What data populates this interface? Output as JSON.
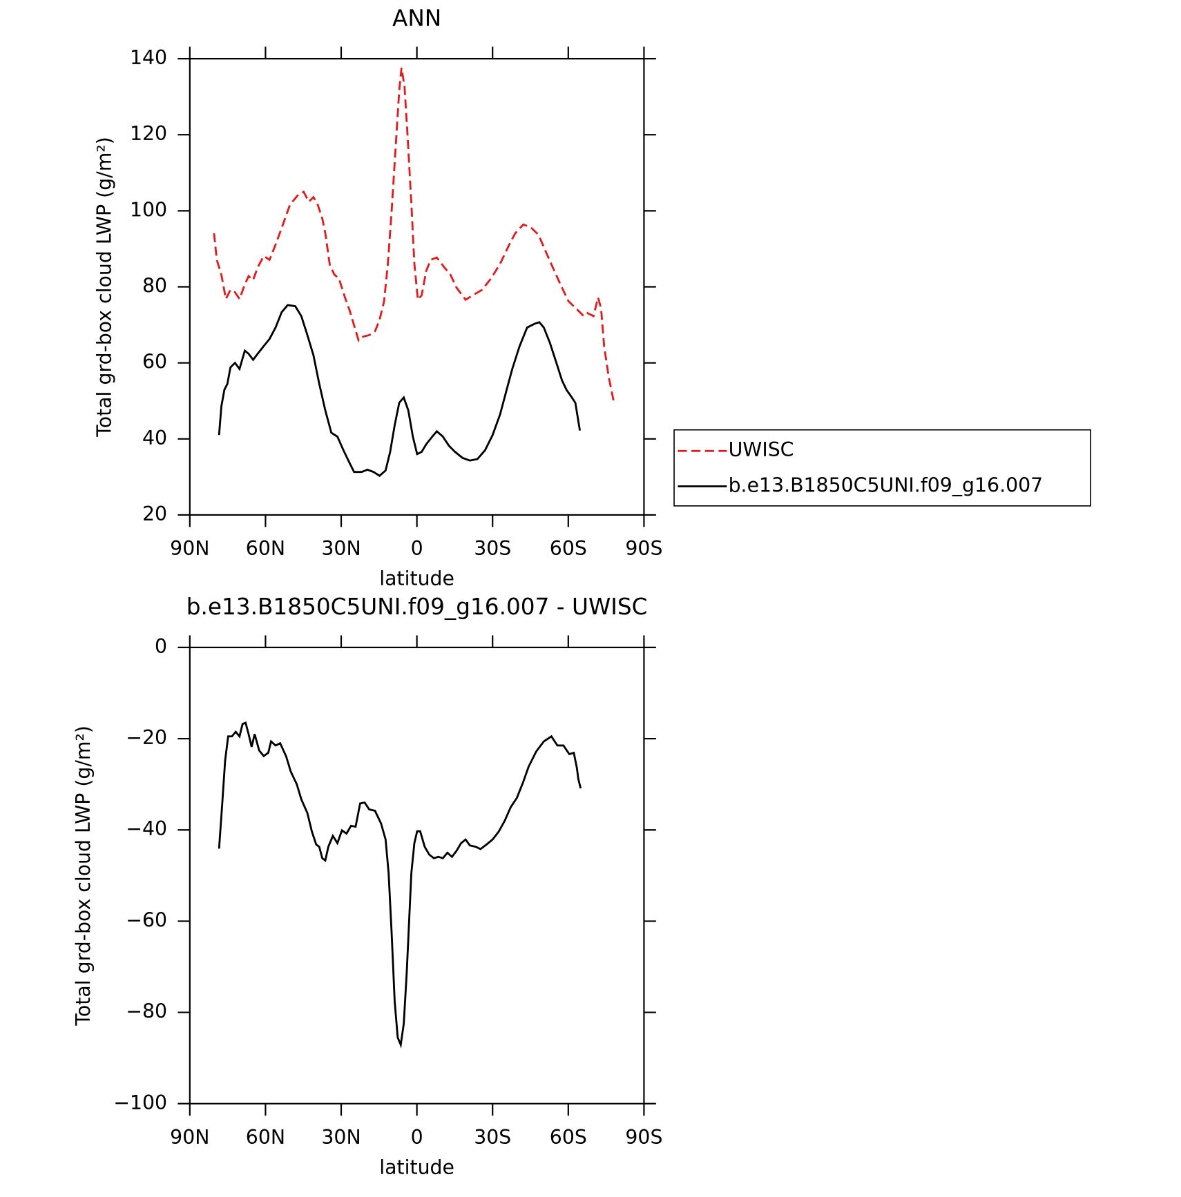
{
  "chart_data": [
    {
      "type": "line",
      "title": "ANN",
      "xlabel": "latitude",
      "ylabel": "Total grd-box cloud LWP (g/m²)",
      "xlim": [
        90,
        -90
      ],
      "xticks": [
        {
          "value": 90,
          "label": "90N"
        },
        {
          "value": 60,
          "label": "60N"
        },
        {
          "value": 30,
          "label": "30N"
        },
        0,
        {
          "value": -30,
          "label": "30S"
        },
        {
          "value": -60,
          "label": "60S"
        },
        {
          "value": -90,
          "label": "90S"
        }
      ],
      "ylim": [
        20,
        140
      ],
      "yticks": [
        20,
        40,
        60,
        80,
        100,
        120,
        140
      ],
      "legend": "right",
      "series": [
        {
          "name": "UWISC",
          "color": "#e41a1c",
          "dash": true,
          "x": [
            80.4,
            79.3,
            77.5,
            75.7,
            73.9,
            72.1,
            70.3,
            68.2,
            66.7,
            64.9,
            63.1,
            60.7,
            58.4,
            56.0,
            53.3,
            50.3,
            47.3,
            44.9,
            42.8,
            41.0,
            39.3,
            37.5,
            36.3,
            34.5,
            32.7,
            30.9,
            28.5,
            26.7,
            24.9,
            23.1,
            21.3,
            18.9,
            16.6,
            14.8,
            13.0,
            11.5,
            10.0,
            8.5,
            7.0,
            6.1,
            4.9,
            3.7,
            2.2,
            1.0,
            -0.4,
            -1.9,
            -3.7,
            -5.5,
            -7.9,
            -10.9,
            -13.3,
            -15.7,
            -19.3,
            -22.2,
            -25.8,
            -29.4,
            -33.0,
            -36.6,
            -39.0,
            -42.2,
            -45.2,
            -48.2,
            -51.2,
            -54.2,
            -57.2,
            -60.1,
            -63.1,
            -66.1,
            -67.6,
            -70.0,
            -71.8,
            -73.0,
            -74.2,
            -76.0,
            -78.1
          ],
          "values": [
            94.1,
            87.1,
            83.2,
            76.8,
            79.2,
            78.6,
            76.8,
            80.6,
            82.8,
            81.8,
            85.1,
            88.1,
            87.1,
            91.1,
            96.0,
            101.6,
            104.0,
            105.0,
            102.4,
            103.6,
            101.6,
            98.0,
            94.1,
            85.7,
            83.2,
            82.2,
            77.2,
            73.9,
            69.9,
            65.9,
            66.9,
            67.3,
            68.3,
            71.3,
            76.2,
            86.1,
            100.0,
            115.8,
            131.7,
            137.6,
            132.7,
            119.8,
            102.0,
            86.1,
            76.6,
            77.8,
            84.2,
            87.1,
            87.7,
            85.1,
            83.2,
            79.8,
            76.6,
            77.8,
            79.2,
            82.2,
            86.1,
            91.1,
            94.1,
            96.4,
            95.6,
            93.7,
            89.1,
            84.6,
            80.2,
            76.2,
            74.3,
            72.3,
            73.1,
            72.3,
            77.2,
            74.3,
            64.4,
            56.4,
            49.5
          ]
        },
        {
          "name": "b.e13.B1850C5UNI.f09_g16.007",
          "color": "#000000",
          "dash": false,
          "x": [
            78.4,
            77.5,
            76.3,
            75.1,
            73.9,
            72.1,
            70.3,
            68.2,
            66.7,
            64.9,
            63.1,
            60.7,
            58.4,
            56.0,
            53.6,
            51.2,
            48.2,
            45.8,
            43.4,
            41.0,
            38.7,
            36.3,
            33.9,
            31.5,
            29.1,
            26.7,
            24.9,
            21.9,
            19.6,
            17.2,
            14.8,
            12.4,
            10.6,
            8.8,
            7.0,
            5.2,
            3.4,
            1.6,
            -0.1,
            -1.9,
            -3.7,
            -6.1,
            -7.9,
            -10.3,
            -12.7,
            -15.1,
            -18.1,
            -21.0,
            -24.0,
            -27.0,
            -30.0,
            -33.0,
            -35.4,
            -37.8,
            -40.7,
            -43.7,
            -46.7,
            -48.5,
            -50.3,
            -52.7,
            -55.1,
            -57.5,
            -59.3,
            -61.0,
            -62.8,
            -64.6
          ],
          "values": [
            41.0,
            48.5,
            52.9,
            54.5,
            58.8,
            60.0,
            58.4,
            63.2,
            62.4,
            60.8,
            62.4,
            64.4,
            66.3,
            69.3,
            73.3,
            75.2,
            74.9,
            72.3,
            67.3,
            62.0,
            54.5,
            47.5,
            41.6,
            40.6,
            37.0,
            33.7,
            31.3,
            31.3,
            31.9,
            31.3,
            30.3,
            31.7,
            36.6,
            43.6,
            49.5,
            50.9,
            47.5,
            40.6,
            36.0,
            36.6,
            38.6,
            40.6,
            42.0,
            40.6,
            38.2,
            36.6,
            35.0,
            34.3,
            34.7,
            37.0,
            41.0,
            46.5,
            52.5,
            58.4,
            64.4,
            69.3,
            70.3,
            70.7,
            69.3,
            65.3,
            60.4,
            55.4,
            52.9,
            51.3,
            49.5,
            42.2
          ]
        }
      ]
    },
    {
      "type": "line",
      "title": "b.e13.B1850C5UNI.f09_g16.007 - UWISC",
      "xlabel": "latitude",
      "ylabel": "Total grd-box cloud LWP (g/m²)",
      "xlim": [
        90,
        -90
      ],
      "xticks": [
        {
          "value": 90,
          "label": "90N"
        },
        {
          "value": 60,
          "label": "60N"
        },
        {
          "value": 30,
          "label": "30N"
        },
        0,
        {
          "value": -30,
          "label": "30S"
        },
        {
          "value": -60,
          "label": "60S"
        },
        {
          "value": -90,
          "label": "90S"
        }
      ],
      "ylim": [
        -100,
        0
      ],
      "yticks": [
        {
          "value": -100,
          "label": "−100"
        },
        {
          "value": -80,
          "label": "−80"
        },
        {
          "value": -60,
          "label": "−60"
        },
        {
          "value": -40,
          "label": "−40"
        },
        {
          "value": -20,
          "label": "−20"
        },
        0
      ],
      "series": [
        {
          "color": "#000000",
          "dash": false,
          "x": [
            78.4,
            77.2,
            76.0,
            74.8,
            73.3,
            71.8,
            70.3,
            69.1,
            67.9,
            66.7,
            65.5,
            64.3,
            62.5,
            60.7,
            58.9,
            57.8,
            56.0,
            54.2,
            51.8,
            50.0,
            47.6,
            45.8,
            43.4,
            41.6,
            39.9,
            38.7,
            37.5,
            36.3,
            35.1,
            33.3,
            31.5,
            29.7,
            27.9,
            26.1,
            24.3,
            22.5,
            20.7,
            18.9,
            16.6,
            14.2,
            12.4,
            11.2,
            10.0,
            8.8,
            7.6,
            6.4,
            5.2,
            4.0,
            2.2,
            1.0,
            -0.1,
            -1.3,
            -3.1,
            -4.9,
            -6.7,
            -8.5,
            -10.3,
            -12.1,
            -13.9,
            -15.7,
            -17.5,
            -19.3,
            -21.0,
            -23.4,
            -25.2,
            -27.6,
            -30.0,
            -32.4,
            -34.8,
            -37.2,
            -39.6,
            -42.0,
            -44.3,
            -47.3,
            -50.3,
            -53.3,
            -55.7,
            -58.1,
            -60.4,
            -62.2,
            -63.4,
            -64.0,
            -64.9
          ],
          "values": [
            -44.1,
            -34.7,
            -24.8,
            -19.5,
            -19.5,
            -18.5,
            -19.5,
            -16.8,
            -16.5,
            -19.0,
            -21.8,
            -19.0,
            -22.6,
            -23.8,
            -23.1,
            -20.6,
            -21.5,
            -21.0,
            -23.9,
            -27.2,
            -30.0,
            -33.3,
            -36.3,
            -40.4,
            -43.2,
            -43.7,
            -46.2,
            -46.7,
            -43.7,
            -41.3,
            -42.9,
            -40.1,
            -40.8,
            -39.1,
            -39.3,
            -34.2,
            -34.0,
            -35.5,
            -35.8,
            -38.6,
            -42.1,
            -49.5,
            -62.7,
            -77.6,
            -85.5,
            -87.1,
            -82.5,
            -71.0,
            -49.5,
            -42.9,
            -40.3,
            -40.3,
            -43.7,
            -45.4,
            -46.2,
            -45.9,
            -46.2,
            -45.0,
            -45.9,
            -44.6,
            -42.9,
            -42.1,
            -43.4,
            -43.7,
            -44.2,
            -43.2,
            -42.1,
            -40.4,
            -38.0,
            -35.0,
            -33.0,
            -29.7,
            -26.1,
            -22.8,
            -20.6,
            -19.5,
            -21.5,
            -21.5,
            -23.4,
            -23.1,
            -26.4,
            -28.9,
            -30.9
          ]
        }
      ]
    }
  ]
}
